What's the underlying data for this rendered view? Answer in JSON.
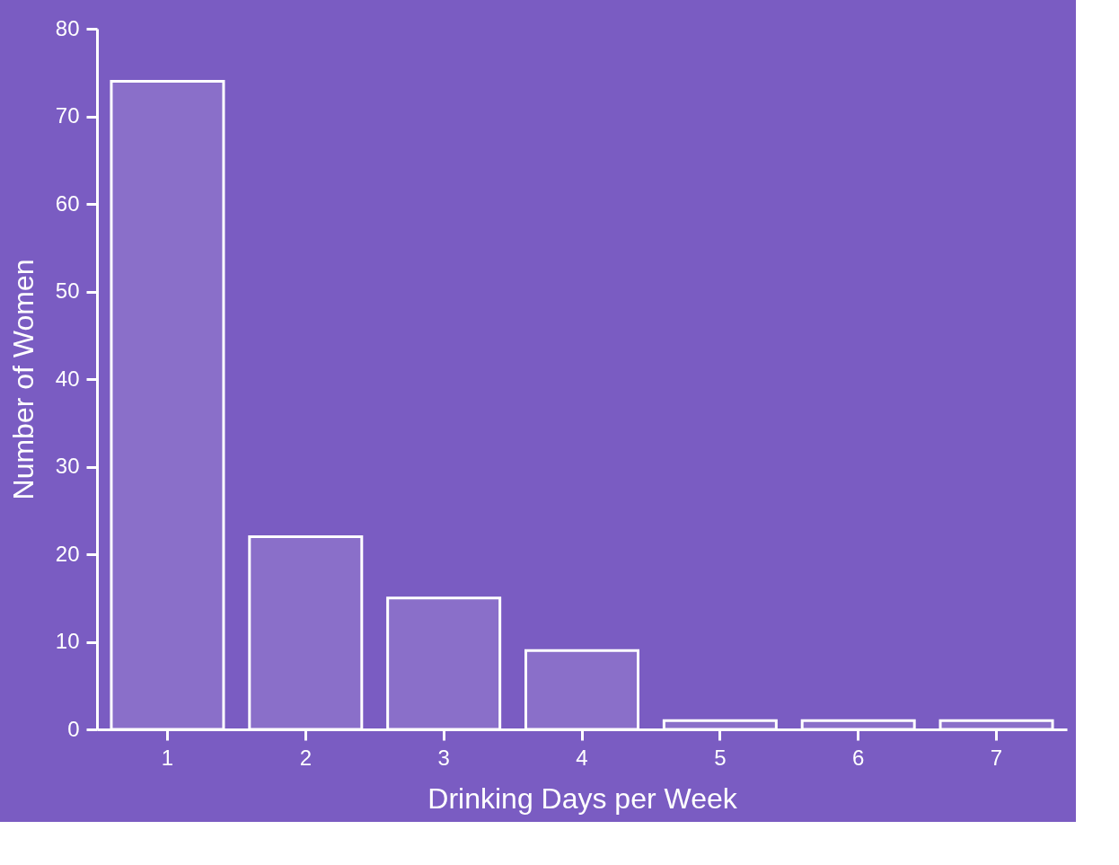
{
  "chart_data": {
    "type": "bar",
    "xlabel": "Drinking Days per Week",
    "ylabel": "Number of Women",
    "categories": [
      "1",
      "2",
      "3",
      "4",
      "5",
      "6",
      "7"
    ],
    "values": [
      74,
      22,
      15,
      9,
      1,
      1,
      1
    ],
    "color": "#ffffff",
    "ylim": [
      0,
      80
    ],
    "yticks": [
      0,
      10,
      20,
      30,
      40,
      50,
      60,
      70,
      80
    ],
    "grid": false
  }
}
